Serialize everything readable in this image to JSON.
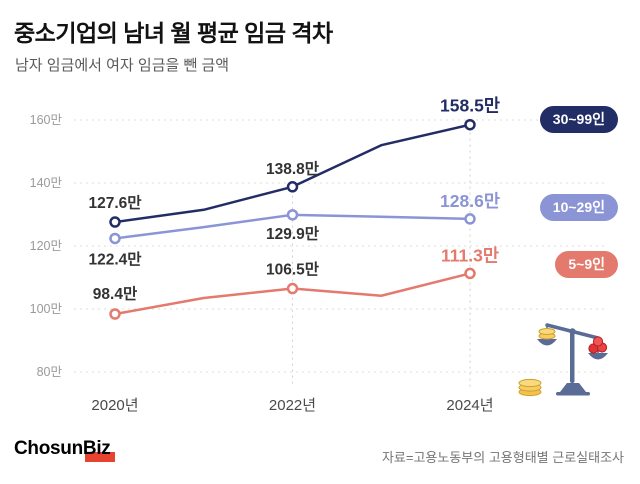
{
  "header": {
    "title": "중소기업의 남녀 월 평균 임금 격차",
    "subtitle": "남자 임금에서 여자 임금을 뺀 금액"
  },
  "legend": [
    {
      "label": "30~99인",
      "color": "#222d66"
    },
    {
      "label": "10~29인",
      "color": "#8b95d6"
    },
    {
      "label": "5~9인",
      "color": "#e4796d"
    }
  ],
  "chart_data": {
    "type": "line",
    "title": "중소기업의 남녀 월 평균 임금 격차",
    "subtitle": "남자 임금에서 여자 임금을 뺀 금액",
    "unit": "만",
    "x": [
      2020,
      2021,
      2022,
      2023,
      2024
    ],
    "xticks": [
      {
        "x": 2020,
        "label": "2020년"
      },
      {
        "x": 2022,
        "label": "2022년"
      },
      {
        "x": 2024,
        "label": "2024년"
      }
    ],
    "yticks": [
      {
        "v": 160,
        "label": "160만"
      },
      {
        "v": 140,
        "label": "140만"
      },
      {
        "v": 120,
        "label": "120만"
      },
      {
        "v": 100,
        "label": "100만"
      },
      {
        "v": 80,
        "label": "80만"
      }
    ],
    "ylim": [
      75,
      168
    ],
    "grid": "dashed-horizontal",
    "legend_position": "right",
    "guides": [
      {
        "x": 2022,
        "from_v": 136
      },
      {
        "x": 2024,
        "from_v": 156
      }
    ],
    "series": [
      {
        "name": "30~99인",
        "color": "#222d66",
        "values": [
          127.6,
          131.5,
          138.8,
          152.0,
          158.5
        ],
        "points": [
          {
            "x": 2020,
            "v": 127.6,
            "label": "127.6만",
            "dy": -14,
            "emph": false
          },
          {
            "x": 2022,
            "v": 138.8,
            "label": "138.8만",
            "dy": -13,
            "emph": false
          },
          {
            "x": 2024,
            "v": 158.5,
            "label": "158.5만",
            "dy": -13,
            "emph": true
          }
        ]
      },
      {
        "name": "10~29인",
        "color": "#8b95d6",
        "values": [
          122.4,
          126.0,
          129.9,
          129.3,
          128.6
        ],
        "points": [
          {
            "x": 2020,
            "v": 122.4,
            "label": "122.4만",
            "dy": 26,
            "emph": false
          },
          {
            "x": 2022,
            "v": 129.9,
            "label": "129.9만",
            "dy": 24,
            "emph": false
          },
          {
            "x": 2024,
            "v": 128.6,
            "label": "128.6만",
            "dy": -12,
            "emph": true
          }
        ]
      },
      {
        "name": "5~9인",
        "color": "#e4796d",
        "values": [
          98.4,
          103.5,
          106.5,
          104.2,
          111.3
        ],
        "points": [
          {
            "x": 2020,
            "v": 98.4,
            "label": "98.4만",
            "dy": -15,
            "emph": false
          },
          {
            "x": 2022,
            "v": 106.5,
            "label": "106.5만",
            "dy": -14,
            "emph": false
          },
          {
            "x": 2024,
            "v": 111.3,
            "label": "111.3만",
            "dy": -12,
            "emph": true
          }
        ]
      }
    ]
  },
  "icons": {
    "scale_icon": "balance-scale-with-coins"
  },
  "footer": {
    "logo": "ChosunBiz",
    "source": "자료=고용노동부의 고용형태별 근로실태조사"
  }
}
